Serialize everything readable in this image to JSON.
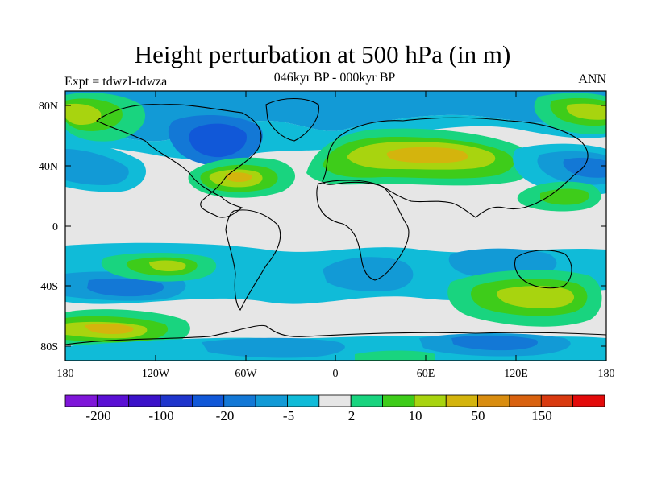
{
  "title": "Height perturbation at 500 hPa (in m)",
  "subtitle": "046kyr BP - 000kyr BP",
  "left_label": "Expt = tdwzI-tdwza",
  "right_label": "ANN",
  "lat_ticks": [
    "80N",
    "40N",
    "0",
    "40S",
    "80S"
  ],
  "lon_ticks": [
    "180",
    "120W",
    "60W",
    "0",
    "60E",
    "120E",
    "180"
  ],
  "colorbar": {
    "labels": [
      "-200",
      "-100",
      "-20",
      "-5",
      "2",
      "10",
      "50",
      "150"
    ],
    "colors": [
      "#7f16d9",
      "#5a10d4",
      "#3b12c9",
      "#1f35cc",
      "#1158d8",
      "#1378d6",
      "#129ad6",
      "#10bbd8",
      "#e6e6e6",
      "#19d47f",
      "#3ecc1a",
      "#a8d40f",
      "#d4b40d",
      "#d98d10",
      "#d9620f",
      "#d93a10",
      "#e30a0a"
    ]
  },
  "palette": {
    "background": "#e6e6e6",
    "neg_light": "#10bbd8",
    "neg_mid": "#129ad6",
    "neg_strong": "#1378d6",
    "neg_deep": "#1158d8",
    "pos_light": "#19d47f",
    "pos_mid": "#3ecc1a",
    "pos_strong": "#a8d40f",
    "pos_peak": "#d4b40d"
  }
}
